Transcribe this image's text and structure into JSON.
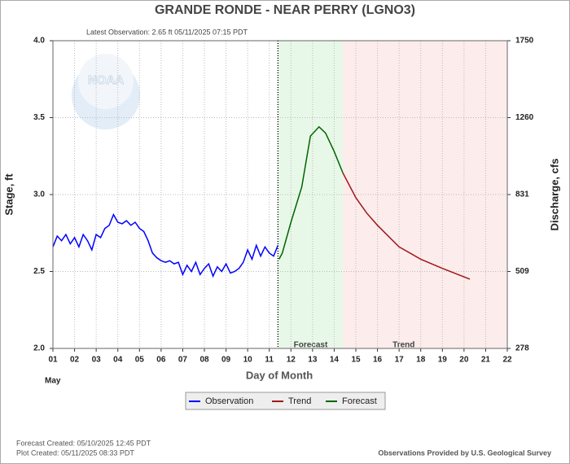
{
  "chart_data": {
    "type": "line",
    "title": "GRANDE RONDE - NEAR PERRY  (LGNO3)",
    "subtitle": "Latest Observation: 2.65 ft 05/11/2025 07:15 PDT",
    "logo_text": "NOAA",
    "y_label": "Stage, ft",
    "y2_label": "Discharge, cfs",
    "x_label": "Day of Month",
    "x_sublabel": "May",
    "xlim": [
      1,
      22
    ],
    "xticks": [
      {
        "value": 1,
        "label": "01"
      },
      {
        "value": 2,
        "label": "02"
      },
      {
        "value": 3,
        "label": "03"
      },
      {
        "value": 4,
        "label": "04"
      },
      {
        "value": 5,
        "label": "05"
      },
      {
        "value": 6,
        "label": "06"
      },
      {
        "value": 7,
        "label": "07"
      },
      {
        "value": 8,
        "label": "08"
      },
      {
        "value": 9,
        "label": "09"
      },
      10,
      11,
      12,
      13,
      14,
      15,
      16,
      17,
      18,
      19,
      20,
      21,
      22
    ],
    "ylim": [
      2,
      4
    ],
    "yticks": [
      {
        "value": 2,
        "label": "2.0"
      },
      2.5,
      {
        "value": 3,
        "label": "3.0"
      },
      3.5,
      {
        "value": 4,
        "label": "4.0"
      }
    ],
    "y2lim": [
      278,
      1750
    ],
    "y2ticks": [
      278,
      509,
      831,
      1260,
      1750
    ],
    "grid": true,
    "observation_line_x": 11.4,
    "regions": [
      {
        "name": "Forecast",
        "x": [
          11.42,
          14.4
        ],
        "color": "#e8f8e8"
      },
      {
        "name": "Trend",
        "x": [
          14.4,
          22
        ],
        "color": "#fcecec"
      }
    ],
    "series": [
      {
        "name": "Observation",
        "color": "#0000ff",
        "x": [
          1.0,
          1.2,
          1.4,
          1.6,
          1.8,
          2.0,
          2.2,
          2.4,
          2.6,
          2.8,
          3.0,
          3.2,
          3.4,
          3.6,
          3.8,
          4.0,
          4.2,
          4.4,
          4.6,
          4.8,
          5.0,
          5.2,
          5.4,
          5.6,
          5.8,
          6.0,
          6.2,
          6.4,
          6.6,
          6.8,
          7.0,
          7.2,
          7.4,
          7.6,
          7.8,
          8.0,
          8.2,
          8.4,
          8.6,
          8.8,
          9.0,
          9.2,
          9.4,
          9.6,
          9.8,
          10.0,
          10.2,
          10.4,
          10.6,
          10.8,
          11.0,
          11.2,
          11.4
        ],
        "values": [
          2.66,
          2.73,
          2.7,
          2.74,
          2.68,
          2.72,
          2.66,
          2.74,
          2.7,
          2.64,
          2.74,
          2.72,
          2.78,
          2.8,
          2.87,
          2.82,
          2.81,
          2.83,
          2.8,
          2.82,
          2.78,
          2.76,
          2.7,
          2.62,
          2.59,
          2.57,
          2.56,
          2.57,
          2.55,
          2.56,
          2.48,
          2.54,
          2.5,
          2.56,
          2.48,
          2.52,
          2.55,
          2.47,
          2.53,
          2.5,
          2.55,
          2.49,
          2.5,
          2.52,
          2.56,
          2.64,
          2.58,
          2.67,
          2.6,
          2.66,
          2.62,
          2.6,
          2.67
        ]
      },
      {
        "name": "Trend",
        "color": "#a01818",
        "x": [
          14.4,
          15,
          15.5,
          16,
          17,
          18,
          19,
          20.27
        ],
        "values": [
          3.14,
          2.98,
          2.88,
          2.8,
          2.66,
          2.58,
          2.52,
          2.45
        ]
      },
      {
        "name": "Forecast",
        "color": "#006400",
        "x": [
          11.45,
          11.6,
          12,
          12.5,
          12.9,
          13.3,
          13.6,
          14,
          14.4
        ],
        "values": [
          2.58,
          2.62,
          2.82,
          3.05,
          3.38,
          3.44,
          3.4,
          3.28,
          3.14
        ]
      }
    ],
    "footer_left": [
      "Forecast Created: 05/10/2025 12:45 PDT",
      "Plot Created: 05/11/2025 08:33 PDT"
    ],
    "footer_right": "Observations Provided by U.S. Geological Survey"
  }
}
